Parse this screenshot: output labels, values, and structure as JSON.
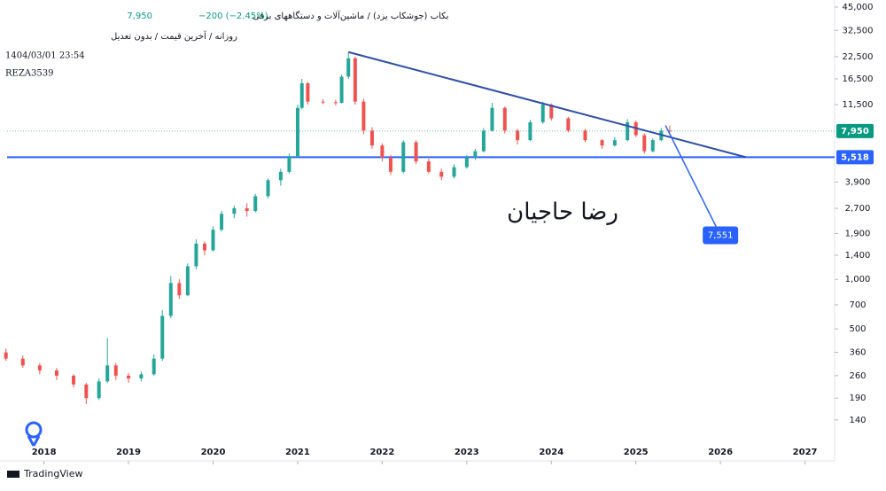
{
  "header": {
    "title": "بکاب (جوشکاب یزد) / ماشین‌آلات و دستگاههای برقی",
    "price": "7,950",
    "change": "−200 (−2.45%)",
    "interval": "روزانه / آخرین قیمت / بدون تعدیل",
    "datetime": "1404/03/01 23:54",
    "user": "REZA3539"
  },
  "watermark": "رضا حاجیان",
  "brand": "TradingView",
  "chart_data": {
    "type": "candlestick",
    "log_scale": true,
    "grid": false,
    "up_color": "#26a69a",
    "down_color": "#ef5350",
    "x": [
      2017.55,
      2017.75,
      2017.95,
      2018.15,
      2018.35,
      2018.5,
      2018.65,
      2018.75,
      2018.85,
      2019.0,
      2019.15,
      2019.3,
      2019.4,
      2019.5,
      2019.6,
      2019.7,
      2019.8,
      2019.9,
      2020.0,
      2020.1,
      2020.25,
      2020.4,
      2020.5,
      2020.65,
      2020.8,
      2020.9,
      2021.0,
      2021.05,
      2021.12,
      2021.3,
      2021.45,
      2021.52,
      2021.6,
      2021.68,
      2021.78,
      2021.88,
      2022.0,
      2022.1,
      2022.25,
      2022.4,
      2022.55,
      2022.7,
      2022.85,
      2023.0,
      2023.1,
      2023.2,
      2023.3,
      2023.45,
      2023.6,
      2023.75,
      2023.9,
      2024.0,
      2024.2,
      2024.4,
      2024.6,
      2024.75,
      2024.9,
      2025.0,
      2025.1,
      2025.2,
      2025.3,
      2025.4
    ],
    "open": [
      360,
      330,
      300,
      280,
      260,
      230,
      190,
      240,
      300,
      260,
      250,
      265,
      330,
      600,
      950,
      800,
      1200,
      1650,
      1500,
      2000,
      2500,
      2700,
      2600,
      3200,
      4000,
      4500,
      5600,
      11000,
      15500,
      12000,
      11900,
      11800,
      17000,
      22000,
      12000,
      8000,
      6500,
      5500,
      4500,
      6800,
      5200,
      4500,
      4200,
      4800,
      5500,
      6000,
      8000,
      11000,
      8000,
      7000,
      9000,
      11500,
      9500,
      8000,
      7000,
      6500,
      7000,
      9000,
      7500,
      6000,
      7000,
      8000
    ],
    "high": [
      380,
      345,
      310,
      290,
      265,
      235,
      250,
      440,
      310,
      270,
      275,
      350,
      650,
      1050,
      1000,
      1250,
      1750,
      1700,
      2100,
      2600,
      2800,
      2900,
      3300,
      4100,
      4700,
      5800,
      11500,
      16500,
      15800,
      12400,
      12300,
      17500,
      24000,
      22500,
      12500,
      8400,
      6700,
      5700,
      7000,
      7000,
      5400,
      4700,
      5000,
      5700,
      6200,
      8300,
      11800,
      11200,
      8200,
      9300,
      12000,
      11700,
      9700,
      8200,
      7100,
      7300,
      9400,
      9200,
      7700,
      7200,
      8300,
      8600
    ],
    "low": [
      320,
      290,
      265,
      245,
      220,
      175,
      185,
      235,
      245,
      235,
      240,
      260,
      320,
      580,
      760,
      790,
      1150,
      1400,
      1480,
      1950,
      2350,
      2400,
      2550,
      3100,
      3700,
      4400,
      5500,
      10800,
      11500,
      11600,
      11400,
      11700,
      16500,
      11500,
      7600,
      6200,
      5200,
      4300,
      4400,
      5000,
      4400,
      4000,
      4100,
      4700,
      5300,
      5900,
      7900,
      7700,
      6600,
      6900,
      8800,
      9200,
      7800,
      6800,
      6200,
      6400,
      6900,
      7300,
      5800,
      5900,
      6900,
      7800
    ],
    "close": [
      330,
      300,
      280,
      260,
      230,
      190,
      240,
      300,
      260,
      250,
      265,
      330,
      600,
      950,
      800,
      1200,
      1650,
      1500,
      2000,
      2500,
      2700,
      2600,
      3200,
      4000,
      4500,
      5600,
      11000,
      15500,
      12000,
      11900,
      11800,
      17000,
      22000,
      12000,
      8000,
      6500,
      5500,
      4500,
      6800,
      5200,
      4500,
      4200,
      4800,
      5500,
      6000,
      8000,
      11000,
      8000,
      7000,
      9000,
      11500,
      9500,
      8000,
      7000,
      6500,
      7000,
      9000,
      7500,
      6000,
      7000,
      8000,
      7950
    ],
    "xlim": [
      2017.48,
      2027.35
    ],
    "xticks": [
      2018,
      2019,
      2020,
      2021,
      2022,
      2023,
      2024,
      2025,
      2026,
      2027
    ],
    "ylim": [
      79,
      49700
    ],
    "yticks": [
      140,
      190,
      260,
      360,
      500,
      700,
      {
        "value": 1000,
        "label": "1,000"
      },
      {
        "value": 1400,
        "label": "1,400"
      },
      {
        "value": 1900,
        "label": "1,900"
      },
      {
        "value": 2700,
        "label": "2,700"
      },
      {
        "value": 3900,
        "label": "3,900"
      },
      {
        "value": 11500,
        "label": "11,500"
      },
      {
        "value": 16500,
        "label": "16,500"
      },
      {
        "value": 22500,
        "label": "22,500"
      },
      {
        "value": 32500,
        "label": "32,500"
      },
      {
        "value": 45000,
        "label": "45,000"
      }
    ],
    "price_lines": [
      {
        "value": 7950,
        "label": "7,950",
        "color": "#089981"
      },
      {
        "value": 5518,
        "label": "5,518",
        "color": "#2962ff"
      }
    ],
    "trendline": {
      "x": [
        2021.6,
        2026.3
      ],
      "y": [
        24000,
        5518
      ],
      "color": "#2f4ea8"
    },
    "target": {
      "x": [
        2025.35,
        2026.0
      ],
      "y": [
        8600,
        1850
      ],
      "label": "7,551",
      "color": "#2962ff"
    }
  }
}
